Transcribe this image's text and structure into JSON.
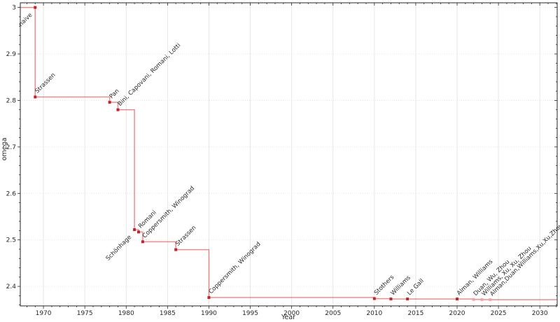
{
  "chart_data": {
    "type": "line",
    "subtype": "step-post",
    "title": "",
    "xlabel": "Year",
    "ylabel": "omega",
    "xlim": [
      1967.2,
      2032.1
    ],
    "ylim": [
      2.358,
      3.01
    ],
    "grid": true,
    "legend": null,
    "x_ticks": [
      {
        "value": 1970,
        "label": "1970"
      },
      {
        "value": 1975,
        "label": "1975"
      },
      {
        "value": 1980,
        "label": "1980"
      },
      {
        "value": 1985,
        "label": "1985"
      },
      {
        "value": 1990,
        "label": "1990"
      },
      {
        "value": 1995,
        "label": "1995"
      },
      {
        "value": 2000,
        "label": "2000"
      },
      {
        "value": 2005,
        "label": "2005"
      },
      {
        "value": 2010,
        "label": "2010"
      },
      {
        "value": 2015,
        "label": "2015"
      },
      {
        "value": 2020,
        "label": "2020"
      },
      {
        "value": 2025,
        "label": "2025"
      },
      {
        "value": 2030,
        "label": "2030"
      }
    ],
    "x_minor_step": 1,
    "y_ticks": [
      {
        "value": 3.0,
        "label": "3"
      },
      {
        "value": 2.9,
        "label": "2.9"
      },
      {
        "value": 2.8,
        "label": "2.8"
      },
      {
        "value": 2.7,
        "label": "2.7"
      },
      {
        "value": 2.6,
        "label": "2.6"
      },
      {
        "value": 2.5,
        "label": "2.5"
      },
      {
        "value": 2.4,
        "label": "2.4"
      }
    ],
    "y_minor_step": 0.02,
    "colors": {
      "line": "rgba(225,45,50,0.55)",
      "marker": "#c22428",
      "marker_recent": "#f2a4a7",
      "label": "#1a1a1a",
      "label_recent": "#ababab",
      "grid": "#e6e6e6",
      "spine": "#262626"
    },
    "points": [
      {
        "label": "naive",
        "year": 1969,
        "omega": 3.0,
        "recent": false,
        "label_side": "below"
      },
      {
        "label": "Strassen",
        "year": 1969,
        "omega": 2.8074,
        "recent": false,
        "label_side": "above"
      },
      {
        "label": "Pan",
        "year": 1978,
        "omega": 2.796,
        "recent": false,
        "label_side": "above"
      },
      {
        "label": "Bini, Capovani, Romani, Lotti",
        "year": 1979,
        "omega": 2.78,
        "recent": false,
        "label_side": "above"
      },
      {
        "label": "Schönhage",
        "year": 1981,
        "omega": 2.522,
        "recent": false,
        "label_side": "below"
      },
      {
        "label": "Romani",
        "year": 1981.5,
        "omega": 2.517,
        "recent": false,
        "label_side": "above"
      },
      {
        "label": "Coppersmith, Winograd",
        "year": 1982,
        "omega": 2.496,
        "recent": false,
        "label_side": "above"
      },
      {
        "label": "Strassen",
        "year": 1986,
        "omega": 2.479,
        "recent": false,
        "label_side": "above"
      },
      {
        "label": "Coppersmith, Winograd",
        "year": 1990,
        "omega": 2.376,
        "recent": false,
        "label_side": "above"
      },
      {
        "label": "Stothers",
        "year": 2010,
        "omega": 2.3737,
        "recent": false,
        "label_side": "above"
      },
      {
        "label": "Williams",
        "year": 2012,
        "omega": 2.3729,
        "recent": false,
        "label_side": "above"
      },
      {
        "label": "Le Gall",
        "year": 2014,
        "omega": 2.37287,
        "recent": false,
        "label_side": "above"
      },
      {
        "label": "Alman, Williams",
        "year": 2020,
        "omega": 2.37286,
        "recent": false,
        "label_side": "above"
      },
      {
        "label": "Duan, Wu, Zhou",
        "year": 2022,
        "omega": 2.37188,
        "recent": true,
        "label_side": "above"
      },
      {
        "label": "Williams, Xu, Xu, Zhou",
        "year": 2023,
        "omega": 2.37155,
        "recent": true,
        "label_side": "above"
      },
      {
        "label": "Alman,Duan,Williams,Xu,Xu,Zhou",
        "year": 2024,
        "omega": 2.37134,
        "recent": true,
        "label_side": "above"
      }
    ]
  }
}
